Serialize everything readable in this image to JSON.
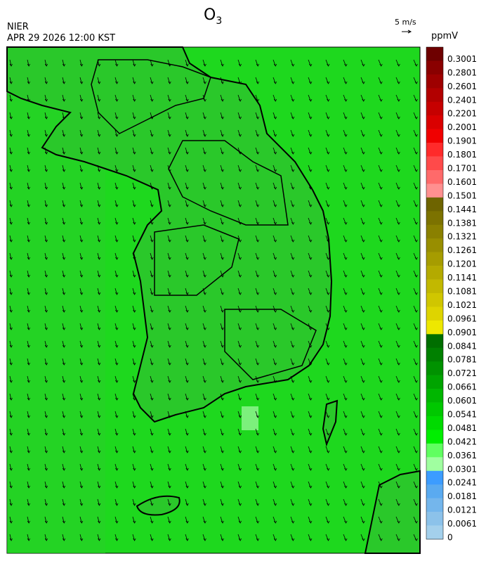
{
  "header": {
    "title": "O",
    "title_subscript": "3",
    "agency": "NIER",
    "datetime": "APR 29 2026 12:00 KST",
    "vector_scale": "5 m/s"
  },
  "colorbar": {
    "unit": "ppmV",
    "labels": [
      "0.3001",
      "0.2801",
      "0.2601",
      "0.2401",
      "0.2201",
      "0.2001",
      "0.1901",
      "0.1801",
      "0.1701",
      "0.1601",
      "0.1501",
      "0.1441",
      "0.1381",
      "0.1321",
      "0.1261",
      "0.1201",
      "0.1141",
      "0.1081",
      "0.1021",
      "0.0961",
      "0.0901",
      "0.0841",
      "0.0781",
      "0.0721",
      "0.0661",
      "0.0601",
      "0.0541",
      "0.0481",
      "0.0421",
      "0.0361",
      "0.0301",
      "0.0241",
      "0.0181",
      "0.0121",
      "0.0061",
      "0"
    ],
    "colors": [
      "#6e0000",
      "#8a0000",
      "#9e0000",
      "#b20000",
      "#c60000",
      "#da0000",
      "#f00000",
      "#ff2a2a",
      "#ff4a4a",
      "#ff6a6a",
      "#ff9090",
      "#6e6400",
      "#7c7200",
      "#8a8000",
      "#988e00",
      "#a69c00",
      "#b4aa00",
      "#c2b800",
      "#d0c600",
      "#ded400",
      "#eee800",
      "#006e00",
      "#008000",
      "#009200",
      "#00a400",
      "#00b600",
      "#00c800",
      "#00da00",
      "#00ee00",
      "#60ff60",
      "#a0ffa0",
      "#3c9cff",
      "#5aaaf0",
      "#74b6ec",
      "#8cc2ea",
      "#a4d0ec"
    ]
  }
}
